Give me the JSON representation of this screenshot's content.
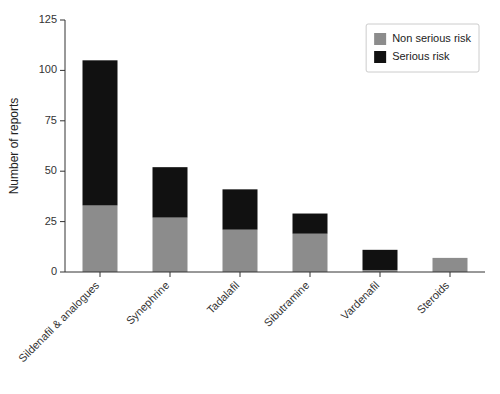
{
  "chart_data": {
    "type": "bar",
    "stacked": true,
    "categories": [
      "Sildenafil & analogues",
      "Synephrine",
      "Tadalafil",
      "Sibutramine",
      "Vardenafil",
      "Steroids"
    ],
    "series": [
      {
        "name": "Non serious risk",
        "color": "#8c8c8c",
        "values": [
          33,
          27,
          21,
          19,
          1,
          7
        ]
      },
      {
        "name": "Serious risk",
        "color": "#111111",
        "values": [
          72,
          25,
          20,
          10,
          10,
          0
        ]
      }
    ],
    "ylabel": "Number of reports",
    "ylim": [
      0,
      125
    ],
    "yticks": [
      0,
      25,
      50,
      75,
      100,
      125
    ],
    "grid": false,
    "legend": "upper right"
  }
}
